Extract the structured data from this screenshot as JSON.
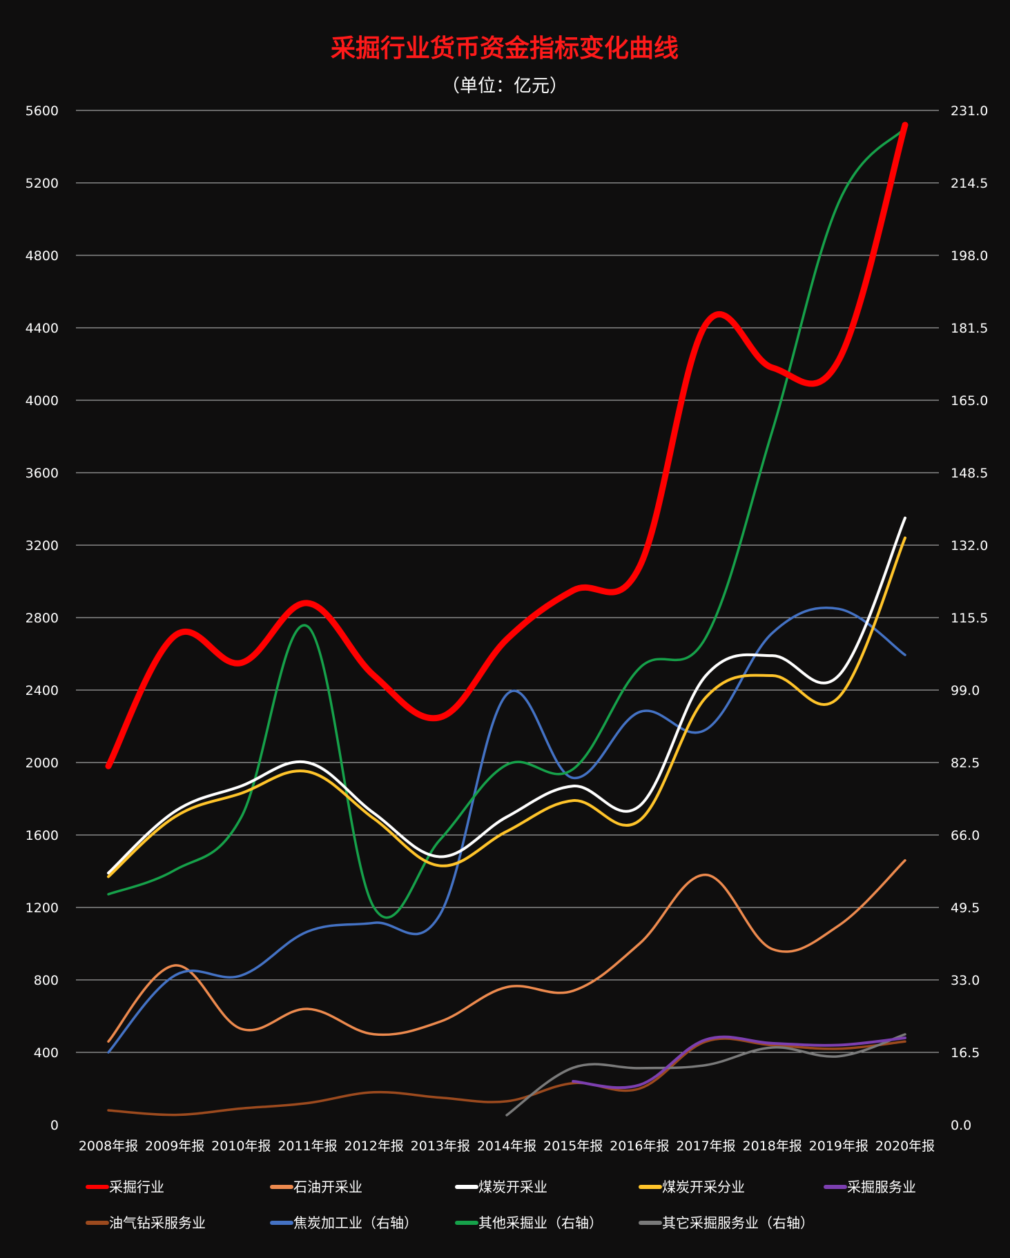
{
  "chart_data": {
    "type": "line",
    "title": "采掘行业货币资金指标变化曲线",
    "subtitle": "（单位：亿元）",
    "categories": [
      "2008年报",
      "2009年报",
      "2010年报",
      "2011年报",
      "2012年报",
      "2013年报",
      "2014年报",
      "2015年报",
      "2016年报",
      "2017年报",
      "2018年报",
      "2019年报",
      "2020年报"
    ],
    "y_left": {
      "min": 0,
      "max": 5600,
      "ticks": [
        "0",
        "400",
        "800",
        "1200",
        "1600",
        "2000",
        "2400",
        "2800",
        "3200",
        "3600",
        "4000",
        "4400",
        "4800",
        "5200",
        "5600"
      ]
    },
    "y_right": {
      "min": 0,
      "max": 231,
      "ticks": [
        "0.0",
        "16.5",
        "33.0",
        "49.5",
        "66.0",
        "82.5",
        "99.0",
        "115.5",
        "132.0",
        "148.5",
        "165.0",
        "181.5",
        "198.0",
        "214.5",
        "231.0"
      ]
    },
    "grid": true,
    "legend_position": "bottom",
    "series": [
      {
        "name": "采掘行业",
        "axis": "left",
        "color": "#ff0000",
        "width": 9,
        "values": [
          1980,
          2700,
          2550,
          2880,
          2480,
          2250,
          2680,
          2950,
          3080,
          4420,
          4180,
          4220,
          5520
        ]
      },
      {
        "name": "石油开采业",
        "axis": "left",
        "color": "#ed8a4e",
        "width": 3.5,
        "values": [
          460,
          880,
          530,
          640,
          500,
          570,
          760,
          740,
          1000,
          1380,
          970,
          1100,
          1460
        ]
      },
      {
        "name": "煤炭开采业",
        "axis": "left",
        "color": "#ffffff",
        "width": 4,
        "values": [
          1390,
          1730,
          1870,
          2000,
          1720,
          1480,
          1700,
          1870,
          1760,
          2480,
          2590,
          2480,
          3350
        ]
      },
      {
        "name": "煤炭开采分业",
        "axis": "left",
        "color": "#ffc42a",
        "width": 4,
        "values": [
          1370,
          1700,
          1830,
          1950,
          1690,
          1430,
          1620,
          1790,
          1680,
          2360,
          2480,
          2360,
          3240
        ]
      },
      {
        "name": "采掘服务业",
        "axis": "left",
        "color": "#7c3fb0",
        "width": 4,
        "values": [
          null,
          null,
          null,
          null,
          null,
          null,
          null,
          240,
          220,
          470,
          450,
          440,
          480
        ]
      },
      {
        "name": "油气钻采服务业",
        "axis": "left",
        "color": "#9c4a1e",
        "width": 3.5,
        "values": [
          80,
          55,
          90,
          120,
          180,
          150,
          130,
          230,
          200,
          460,
          440,
          420,
          460
        ]
      },
      {
        "name": "焦炭加工业（右轴）",
        "axis": "right",
        "color": "#4472c4",
        "width": 3.5,
        "values": [
          16.5,
          34.0,
          34.0,
          44.0,
          46.0,
          48.0,
          98.0,
          79.0,
          94.0,
          90.0,
          112.0,
          117.5,
          107.0
        ]
      },
      {
        "name": "其他采掘业（右轴）",
        "axis": "right",
        "color": "#16a14a",
        "width": 3.5,
        "values": [
          52.5,
          58.0,
          70.0,
          113.5,
          49.5,
          65.0,
          82.0,
          81.0,
          104.0,
          111.0,
          158.0,
          210.0,
          227.0
        ]
      },
      {
        "name": "其它采掘服务业（右轴）",
        "axis": "right",
        "color": "#7a7a7a",
        "width": 3.5,
        "values": [
          null,
          null,
          null,
          null,
          null,
          null,
          2.2,
          13.0,
          12.9,
          13.6,
          17.6,
          15.6,
          20.6
        ]
      }
    ]
  }
}
